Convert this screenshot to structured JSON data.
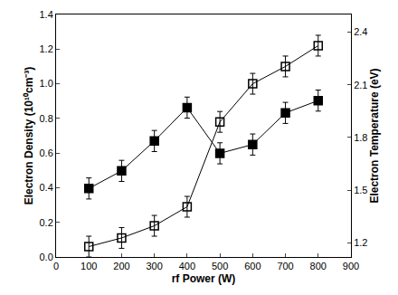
{
  "chart_data": {
    "type": "scatter",
    "x_label": "rf Power (W)",
    "y_label": "Electron Density (10¹⁰cm⁻³)",
    "y2_label": "Electron Temperature (eV)",
    "x": [
      100,
      200,
      300,
      400,
      500,
      600,
      700,
      800
    ],
    "series": [
      {
        "name": "Electron Density",
        "color": "#000000",
        "marker": "open-square",
        "line_style": "solid",
        "values": [
          0.06,
          0.11,
          0.18,
          0.29,
          0.78,
          1.0,
          1.1,
          1.22
        ],
        "errors": [
          0.06,
          0.06,
          0.06,
          0.06,
          0.06,
          0.06,
          0.06,
          0.06
        ]
      },
      {
        "name": "Electron Temperature",
        "color": "#000000",
        "marker": "square",
        "line_style": "solid",
        "axis": "y2",
        "values": [
          1.51,
          1.61,
          1.78,
          1.97,
          1.71,
          1.76,
          1.94,
          2.01
        ],
        "errors": [
          0.06,
          0.06,
          0.06,
          0.06,
          0.06,
          0.06,
          0.06,
          0.06
        ]
      }
    ],
    "xlim": [
      0,
      900
    ],
    "xticks": [
      0,
      100,
      200,
      300,
      400,
      500,
      600,
      700,
      800,
      900
    ],
    "ylim": [
      0,
      1.4
    ],
    "yticks": [
      {
        "value": 0,
        "label": "0.0"
      },
      0.2,
      0.4,
      0.6,
      0.8,
      {
        "value": 1,
        "label": "1.0"
      },
      1.2,
      1.4
    ],
    "y2lim": [
      1.12,
      2.5
    ],
    "y2ticks": [
      1.2,
      1.5,
      1.8,
      2.1,
      2.4
    ],
    "grid": false
  }
}
